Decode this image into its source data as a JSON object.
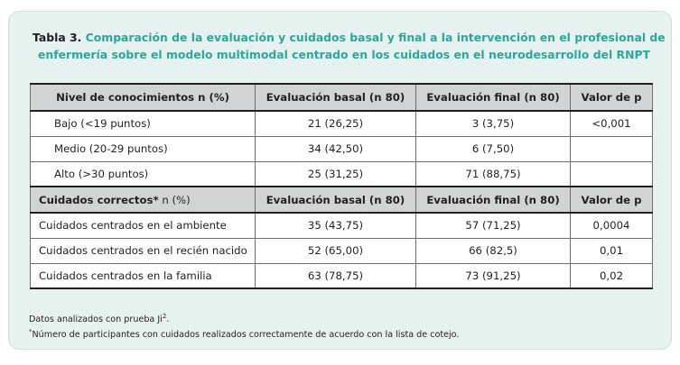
{
  "title": {
    "prefix": "Tabla 3.",
    "line1": "Comparación de la evaluación y cuidados basal y final a la intervención en el profesional de",
    "line2": "enfermería sobre el modelo multimodal centrado en los cuidados en el neurodesarrollo del RNPT"
  },
  "table": {
    "header1": [
      "Nivel de conocimientos n (%)",
      "Evaluación basal (n 80)",
      "Evaluación final (n 80)",
      "Valor de p"
    ],
    "knowledge_rows": [
      {
        "label": "Bajo (<19 puntos)",
        "basal": "21 (26,25)",
        "final": "3 (3,75)",
        "p": "<0,001"
      },
      {
        "label": "Medio (20-29 puntos)",
        "basal": "34 (42,50)",
        "final": "6 (7,50)",
        "p": ""
      },
      {
        "label": "Alto (>30 puntos)",
        "basal": "25 (31,25)",
        "final": "71 (88,75)",
        "p": ""
      }
    ],
    "header2": {
      "label_main": "Cuidados correctos",
      "label_mark": "*",
      "label_rest": " n (%)",
      "basal": "Evaluación basal (n 80)",
      "final": "Evaluación final (n 80)",
      "p": "Valor de p"
    },
    "care_rows": [
      {
        "label": "Cuidados centrados en el ambiente",
        "basal": "35 (43,75)",
        "final": "57 (71,25)",
        "p": "0,0004"
      },
      {
        "label": "Cuidados centrados en el recién nacido",
        "basal": "52 (65,00)",
        "final": "66 (82,5)",
        "p": "0,01"
      },
      {
        "label": "Cuidados centrados en la familia",
        "basal": "63 (78,75)",
        "final": "73 (91,25)",
        "p": "0,02"
      }
    ]
  },
  "footnotes": {
    "note1_text": "Datos analizados con prueba Ji",
    "note1_sup": "2",
    "note1_end": ".",
    "note2_mark": "*",
    "note2_text": "Número de participantes con cuidados realizados correctamente de acuerdo con la lista de cotejo."
  },
  "colors": {
    "title_accent": "#2ea69a",
    "card_background": "#e5f2ef",
    "header_background": "#d1d3d4"
  }
}
